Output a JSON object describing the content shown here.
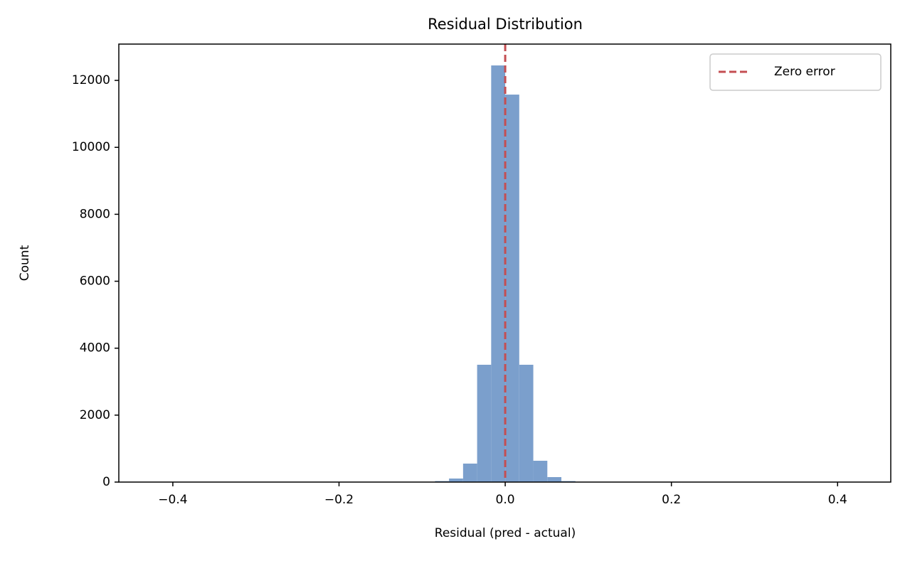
{
  "chart_data": {
    "type": "histogram",
    "title": "Residual Distribution",
    "x_label": "Residual (pred - actual)",
    "y_label": "Count",
    "bins": [
      -0.4227,
      -0.4058,
      -0.3889,
      -0.372,
      -0.3551,
      -0.3381,
      -0.3212,
      -0.3043,
      -0.2874,
      -0.2705,
      -0.2536,
      -0.2367,
      -0.2198,
      -0.2029,
      -0.186,
      -0.1691,
      -0.1522,
      -0.1352,
      -0.1183,
      -0.1014,
      -0.0845,
      -0.0676,
      -0.0507,
      -0.0338,
      -0.0169,
      0,
      0.0169,
      0.0338,
      0.0507,
      0.0676,
      0.0845,
      0.1014,
      0.1183,
      0.1352,
      0.1522,
      0.1691,
      0.186,
      0.2029,
      0.2198,
      0.2367,
      0.2536,
      0.2705,
      0.2874,
      0.3043,
      0.3212,
      0.3381,
      0.3551,
      0.372,
      0.3889,
      0.4058,
      0.4227
    ],
    "values": [
      1,
      0,
      0,
      0,
      0,
      0,
      0,
      0,
      0,
      0,
      0,
      0,
      0,
      0,
      0,
      0,
      0,
      0,
      0,
      0,
      30,
      106,
      552,
      3505,
      12447,
      11576,
      3505,
      637,
      149,
      30,
      0,
      0,
      0,
      0,
      0,
      0,
      0,
      0,
      0,
      0,
      0,
      0,
      0,
      0,
      0,
      0,
      0,
      0,
      0,
      1
    ],
    "color": "#7b9fcc",
    "xlim": [
      -0.465,
      0.464
    ],
    "ylim": [
      0,
      13085
    ],
    "xticks": [
      {
        "value": -0.4,
        "label": "−0.4"
      },
      {
        "value": -0.2,
        "label": "−0.2"
      },
      {
        "value": 0,
        "label": "0.0"
      },
      {
        "value": 0.2,
        "label": "0.2"
      },
      {
        "value": 0.4,
        "label": "0.4"
      }
    ],
    "yticks": [
      0,
      2000,
      4000,
      6000,
      8000,
      10000,
      12000
    ],
    "vline": {
      "x": 0,
      "name": "Zero error",
      "color": "#c44e52"
    },
    "legend": "upper right"
  }
}
